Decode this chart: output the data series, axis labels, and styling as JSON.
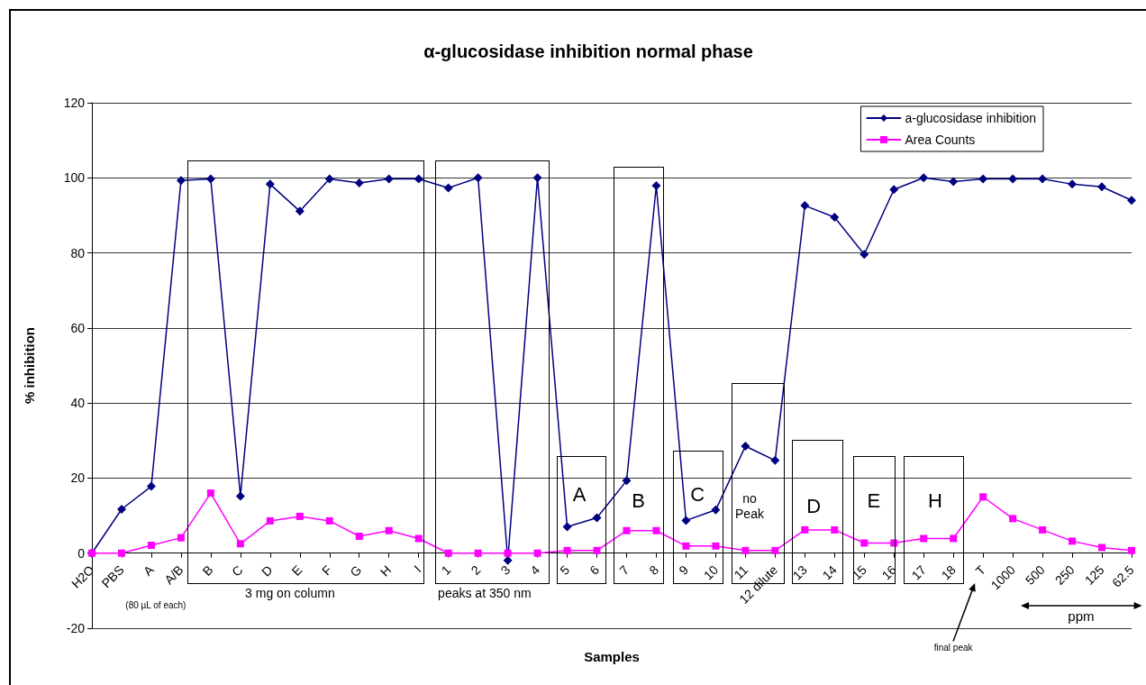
{
  "chart_data": {
    "type": "line",
    "title": "α-glucosidase inhibition normal phase",
    "xlabel": "Samples",
    "ylabel": "% inhibition",
    "categories": [
      "H2O",
      "PBS",
      "A",
      "A/B",
      "B",
      "C",
      "D",
      "E",
      "F",
      "G",
      "H",
      "I",
      "1",
      "2",
      "3",
      "4",
      "5",
      "6",
      "7",
      "8",
      "9",
      "10",
      "11",
      "12 dilute",
      "13",
      "14",
      "15",
      "16",
      "17",
      "18",
      "T",
      "1000",
      "500",
      "250",
      "125",
      "62.5"
    ],
    "series": [
      {
        "name": "a-glucosidase inhibition",
        "color": "#000080",
        "marker": "diamond",
        "values": [
          0,
          11.7,
          17.8,
          99.3,
          99.7,
          15.2,
          98.3,
          91.1,
          99.7,
          98.6,
          99.7,
          99.7,
          97.3,
          100,
          -1.9,
          100,
          7.0,
          9.4,
          19.3,
          97.9,
          8.7,
          11.5,
          28.5,
          24.7,
          92.6,
          89.5,
          79.6,
          96.9,
          100,
          99.0,
          99.7,
          99.7,
          99.7,
          98.3,
          97.6,
          94
        ]
      },
      {
        "name": "Area Counts",
        "color": "#ff00ff",
        "marker": "square",
        "values": [
          0,
          0,
          2.1,
          4.1,
          16.0,
          2.5,
          8.6,
          9.8,
          8.6,
          4.5,
          6.0,
          3.9,
          0,
          0,
          0,
          0,
          0.7,
          0.7,
          6.0,
          6.0,
          1.9,
          1.9,
          0.7,
          0.7,
          6.2,
          6.2,
          2.7,
          2.7,
          3.9,
          3.9,
          15.0,
          9.2,
          6.2,
          3.2,
          1.5,
          0.7
        ]
      }
    ],
    "ylim": [
      -20,
      120
    ],
    "yticks": [
      -20,
      0,
      20,
      40,
      60,
      80,
      100,
      120
    ],
    "grid": "y",
    "legend": "top right",
    "line_style": "solid",
    "annotations": [
      "3 mg on column",
      "peaks at 350 nm",
      "A",
      "B",
      "C",
      "no Peak",
      "D",
      "E",
      "H",
      "(80 µL of each)",
      "ppm",
      "final peak"
    ]
  }
}
